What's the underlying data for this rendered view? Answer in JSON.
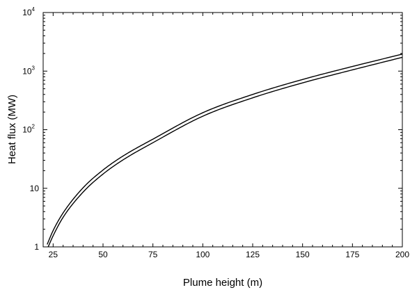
{
  "chart_data": {
    "type": "line",
    "title": "",
    "xlabel": "Plume height (m)",
    "ylabel": "Heat flux (MW)",
    "xlim": [
      20,
      200
    ],
    "ylim": [
      1,
      10000
    ],
    "yscale": "log",
    "grid": false,
    "legend": "none",
    "x_ticks": [
      25,
      50,
      75,
      100,
      125,
      150,
      175,
      200
    ],
    "x_tick_labels": [
      "25",
      "50",
      "75",
      "100",
      "125",
      "150",
      "175",
      "200"
    ],
    "y_ticks": [
      {
        "value": 1,
        "base": "1",
        "exp": ""
      },
      {
        "value": 10,
        "base": "10",
        "exp": ""
      },
      {
        "value": 100,
        "base": "10",
        "exp": "2"
      },
      {
        "value": 1000,
        "base": "10",
        "exp": "3"
      },
      {
        "value": 10000,
        "base": "10",
        "exp": "4"
      }
    ],
    "series": [
      {
        "color": "#000000",
        "x": [
          22,
          25,
          30,
          40,
          50,
          60,
          75,
          100,
          125,
          150,
          175,
          200
        ],
        "y": [
          1.1,
          1.9,
          3.8,
          10.2,
          20.5,
          35.5,
          69,
          195,
          400,
          720,
          1200,
          1950
        ]
      },
      {
        "color": "#000000",
        "x": [
          22.5,
          25,
          30,
          40,
          50,
          60,
          75,
          100,
          125,
          150,
          175,
          200
        ],
        "y": [
          1.0,
          1.55,
          3.2,
          8.6,
          17.5,
          30.5,
          60,
          170,
          350,
          630,
          1050,
          1720
        ]
      }
    ]
  }
}
